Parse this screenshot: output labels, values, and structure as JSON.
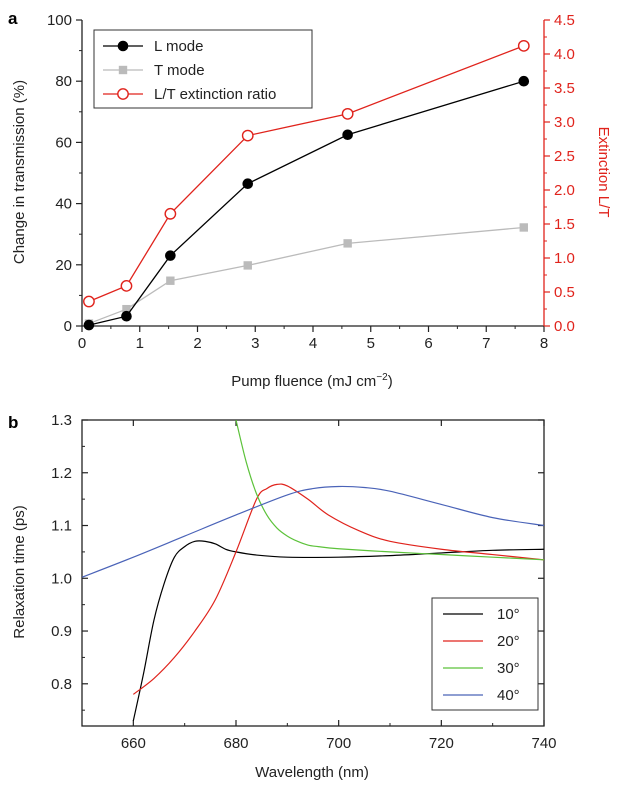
{
  "chart_data": [
    {
      "panel": "a",
      "type": "line",
      "xlabel": "Pump fluence (mJ cm",
      "xlabel_superscript": "−2",
      "xlabel_suffix": ")",
      "ylabel": "Change in transmission (%)",
      "y2label": "Extinction L/T",
      "xlim": [
        0,
        8
      ],
      "ylim": [
        0,
        100
      ],
      "y2lim": [
        0,
        4.5
      ],
      "x_ticks": [
        "0",
        "1",
        "2",
        "3",
        "4",
        "5",
        "6",
        "7",
        "8"
      ],
      "y_ticks": [
        "0",
        "20",
        "40",
        "60",
        "80",
        "100"
      ],
      "y2_ticks": [
        "0.0",
        "0.5",
        "1.0",
        "1.5",
        "2.0",
        "2.5",
        "3.0",
        "3.5",
        "4.0",
        "4.5"
      ],
      "legend_position": "top-left",
      "series": [
        {
          "name": "L mode",
          "axis": "left",
          "color": "#000000",
          "marker": "filled-circle",
          "x": [
            0.12,
            0.77,
            1.53,
            2.87,
            4.6,
            7.65
          ],
          "values": [
            0.3,
            3.2,
            23.0,
            46.5,
            62.5,
            80.0
          ]
        },
        {
          "name": "T mode",
          "axis": "left",
          "color": "#bbbbbb",
          "marker": "filled-square",
          "x": [
            0.12,
            0.77,
            1.53,
            2.87,
            4.6,
            7.65
          ],
          "values": [
            0.8,
            5.5,
            14.8,
            19.8,
            27.0,
            32.2
          ]
        },
        {
          "name": "L/T extinction ratio",
          "axis": "right",
          "color": "#e0231c",
          "marker": "open-circle",
          "x": [
            0.12,
            0.77,
            1.53,
            2.87,
            4.6,
            7.65
          ],
          "values": [
            0.36,
            0.59,
            1.65,
            2.8,
            3.12,
            4.12
          ]
        }
      ]
    },
    {
      "panel": "b",
      "type": "line",
      "xlabel": "Wavelength (nm)",
      "ylabel": "Relaxation time (ps)",
      "xlim": [
        650,
        740
      ],
      "ylim": [
        0.72,
        1.3
      ],
      "x_ticks": [
        "660",
        "680",
        "700",
        "720",
        "740"
      ],
      "y_ticks": [
        "0.8",
        "0.9",
        "1.0",
        "1.1",
        "1.2",
        "1.3"
      ],
      "legend_position": "bottom-right",
      "series": [
        {
          "name": "10°",
          "color": "#000000",
          "x": [
            660,
            662,
            664,
            666,
            668,
            670,
            672,
            674,
            676,
            678,
            680,
            684,
            690,
            700,
            710,
            720,
            730,
            740
          ],
          "values": [
            0.73,
            0.82,
            0.92,
            0.99,
            1.04,
            1.06,
            1.07,
            1.07,
            1.065,
            1.055,
            1.05,
            1.044,
            1.04,
            1.04,
            1.043,
            1.048,
            1.053,
            1.055
          ]
        },
        {
          "name": "20°",
          "color": "#e0231c",
          "x": [
            660,
            664,
            668,
            672,
            676,
            680,
            684,
            686,
            688,
            690,
            694,
            698,
            704,
            710,
            720,
            730,
            740
          ],
          "values": [
            0.78,
            0.81,
            0.85,
            0.9,
            0.96,
            1.05,
            1.15,
            1.17,
            1.178,
            1.175,
            1.15,
            1.12,
            1.09,
            1.07,
            1.055,
            1.045,
            1.035
          ]
        },
        {
          "name": "30°",
          "color": "#5cc23a",
          "x": [
            680,
            682,
            684,
            686,
            688,
            690,
            692,
            694,
            696,
            700,
            710,
            720,
            730,
            740
          ],
          "values": [
            1.3,
            1.22,
            1.16,
            1.12,
            1.095,
            1.08,
            1.07,
            1.063,
            1.06,
            1.056,
            1.05,
            1.045,
            1.04,
            1.035
          ]
        },
        {
          "name": "40°",
          "color": "#4a63b8",
          "x": [
            650,
            660,
            670,
            680,
            690,
            695,
            700,
            705,
            710,
            720,
            730,
            740
          ],
          "values": [
            1.002,
            1.04,
            1.08,
            1.12,
            1.158,
            1.17,
            1.174,
            1.172,
            1.165,
            1.14,
            1.115,
            1.1
          ]
        }
      ]
    }
  ]
}
